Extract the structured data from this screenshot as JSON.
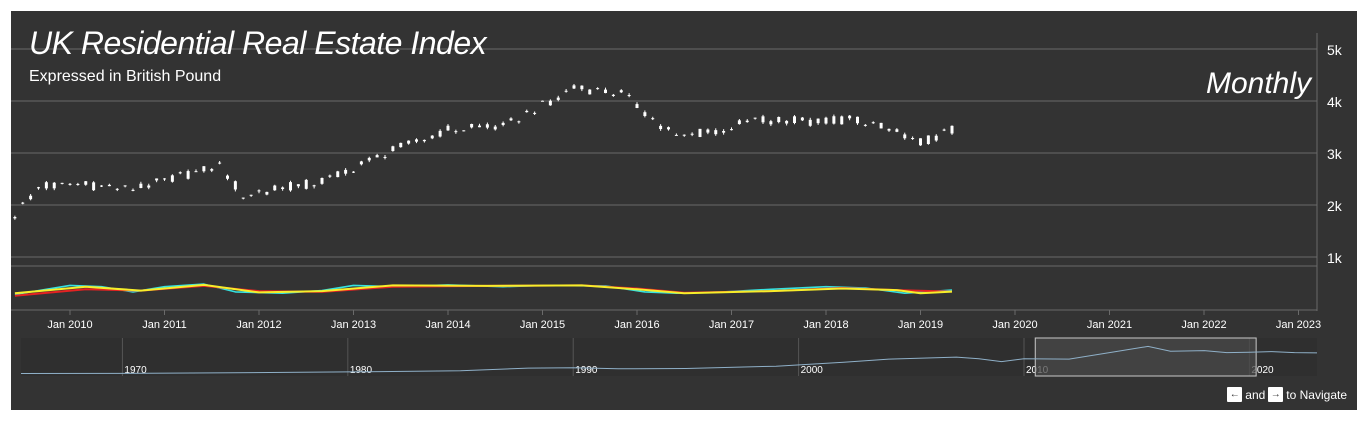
{
  "title": "UK Residential Real Estate Index",
  "subtitle": "Expressed in British Pound",
  "frequency_label": "Monthly",
  "navigation": {
    "left_key": "←",
    "connector": "and",
    "right_key": "→",
    "suffix": "to Navigate"
  },
  "colors": {
    "background": "#333333",
    "candles": "#ffffff",
    "grid": "#6a6a6a",
    "osc_cyan": "#35e2e0",
    "osc_red": "#e52222",
    "osc_yellow": "#f6ee2a",
    "navigator_line": "#8fb0c8",
    "navigator_window": "#4a4a4a"
  },
  "chart_data": {
    "type": "candlestick",
    "title": "UK Residential Real Estate Index",
    "subtitle": "Expressed in British Pound",
    "y_axis": {
      "ticks": [
        "1k",
        "2k",
        "3k",
        "4k",
        "5k"
      ],
      "values": [
        1000,
        2000,
        3000,
        4000,
        5000
      ],
      "range": [
        700,
        5100
      ],
      "position": "right"
    },
    "x_axis": {
      "ticks": [
        "Jan 2010",
        "Jan 2011",
        "Jan 2012",
        "Jan 2013",
        "Jan 2014",
        "Jan 2015",
        "Jan 2016",
        "Jan 2017",
        "Jan 2018",
        "Jan 2019",
        "Jan 2020",
        "Jan 2021",
        "Jan 2022",
        "Jan 2023"
      ],
      "range": [
        "2009-05",
        "2023-03"
      ]
    },
    "grid": true,
    "price_anchors": [
      {
        "date": "2009-06",
        "value": 1800
      },
      {
        "date": "2009-09",
        "value": 2350
      },
      {
        "date": "2010-02",
        "value": 2400
      },
      {
        "date": "2010-09",
        "value": 2300
      },
      {
        "date": "2011-08",
        "value": 2750
      },
      {
        "date": "2011-11",
        "value": 2200
      },
      {
        "date": "2012-09",
        "value": 2450
      },
      {
        "date": "2013-06",
        "value": 3050
      },
      {
        "date": "2014-01",
        "value": 3450
      },
      {
        "date": "2014-08",
        "value": 3500
      },
      {
        "date": "2015-05",
        "value": 4250
      },
      {
        "date": "2015-11",
        "value": 4150
      },
      {
        "date": "2016-06",
        "value": 3300
      },
      {
        "date": "2016-12",
        "value": 3450
      },
      {
        "date": "2017-04",
        "value": 3650
      },
      {
        "date": "2017-12",
        "value": 3600
      },
      {
        "date": "2018-05",
        "value": 3650
      },
      {
        "date": "2018-10",
        "value": 3400
      },
      {
        "date": "2019-01",
        "value": 3200
      },
      {
        "date": "2019-05",
        "value": 3450
      }
    ],
    "oscillator": {
      "cyan": [
        {
          "date": "2009-06",
          "value": 0.25
        },
        {
          "date": "2009-10",
          "value": 0.45
        },
        {
          "date": "2010-01",
          "value": 0.6
        },
        {
          "date": "2010-05",
          "value": 0.55
        },
        {
          "date": "2010-09",
          "value": 0.35
        },
        {
          "date": "2011-01",
          "value": 0.55
        },
        {
          "date": "2011-06",
          "value": 0.65
        },
        {
          "date": "2011-10",
          "value": 0.35
        },
        {
          "date": "2012-04",
          "value": 0.3
        },
        {
          "date": "2012-09",
          "value": 0.4
        },
        {
          "date": "2013-01",
          "value": 0.6
        },
        {
          "date": "2013-06",
          "value": 0.55
        },
        {
          "date": "2014-01",
          "value": 0.62
        },
        {
          "date": "2014-08",
          "value": 0.55
        },
        {
          "date": "2015-01",
          "value": 0.6
        },
        {
          "date": "2015-09",
          "value": 0.58
        },
        {
          "date": "2016-02",
          "value": 0.35
        },
        {
          "date": "2016-06",
          "value": 0.3
        },
        {
          "date": "2016-12",
          "value": 0.35
        },
        {
          "date": "2017-06",
          "value": 0.45
        },
        {
          "date": "2018-01",
          "value": 0.55
        },
        {
          "date": "2018-06",
          "value": 0.5
        },
        {
          "date": "2018-11",
          "value": 0.3
        },
        {
          "date": "2019-05",
          "value": 0.42
        }
      ],
      "red": [
        {
          "date": "2009-06",
          "value": 0.2
        },
        {
          "date": "2010-03",
          "value": 0.45
        },
        {
          "date": "2010-10",
          "value": 0.4
        },
        {
          "date": "2011-06",
          "value": 0.58
        },
        {
          "date": "2012-01",
          "value": 0.38
        },
        {
          "date": "2012-09",
          "value": 0.35
        },
        {
          "date": "2013-06",
          "value": 0.55
        },
        {
          "date": "2014-06",
          "value": 0.58
        },
        {
          "date": "2015-06",
          "value": 0.6
        },
        {
          "date": "2016-01",
          "value": 0.48
        },
        {
          "date": "2016-07",
          "value": 0.32
        },
        {
          "date": "2017-06",
          "value": 0.38
        },
        {
          "date": "2018-03",
          "value": 0.5
        },
        {
          "date": "2018-10",
          "value": 0.42
        },
        {
          "date": "2019-05",
          "value": 0.36
        }
      ],
      "yellow": [
        {
          "date": "2009-06",
          "value": 0.3
        },
        {
          "date": "2010-03",
          "value": 0.55
        },
        {
          "date": "2010-10",
          "value": 0.4
        },
        {
          "date": "2011-06",
          "value": 0.62
        },
        {
          "date": "2012-01",
          "value": 0.33
        },
        {
          "date": "2012-09",
          "value": 0.38
        },
        {
          "date": "2013-06",
          "value": 0.6
        },
        {
          "date": "2014-06",
          "value": 0.58
        },
        {
          "date": "2015-06",
          "value": 0.6
        },
        {
          "date": "2016-01",
          "value": 0.45
        },
        {
          "date": "2016-07",
          "value": 0.3
        },
        {
          "date": "2017-06",
          "value": 0.38
        },
        {
          "date": "2018-03",
          "value": 0.48
        },
        {
          "date": "2018-10",
          "value": 0.42
        },
        {
          "date": "2019-01",
          "value": 0.3
        },
        {
          "date": "2019-05",
          "value": 0.36
        }
      ]
    },
    "navigator": {
      "ticks": [
        "1970",
        "1980",
        "1990",
        "2000",
        "2010",
        "2020"
      ],
      "range": [
        1965.5,
        2023.0
      ],
      "window": [
        2010.5,
        2020.3
      ],
      "series": [
        [
          1965.5,
          80
        ],
        [
          1970,
          100
        ],
        [
          1975,
          180
        ],
        [
          1980,
          330
        ],
        [
          1985,
          500
        ],
        [
          1988,
          900
        ],
        [
          1990,
          950
        ],
        [
          1992,
          800
        ],
        [
          1995,
          850
        ],
        [
          1999,
          1200
        ],
        [
          2002,
          1800
        ],
        [
          2004,
          2300
        ],
        [
          2007,
          2600
        ],
        [
          2008,
          2350
        ],
        [
          2009,
          1900
        ],
        [
          2010,
          2350
        ],
        [
          2012,
          2300
        ],
        [
          2014,
          3400
        ],
        [
          2015.5,
          4250
        ],
        [
          2016.5,
          3500
        ],
        [
          2018,
          3600
        ],
        [
          2019,
          3300
        ],
        [
          2020,
          3350
        ],
        [
          2021,
          3450
        ],
        [
          2022,
          3300
        ],
        [
          2023,
          3250
        ]
      ]
    }
  }
}
